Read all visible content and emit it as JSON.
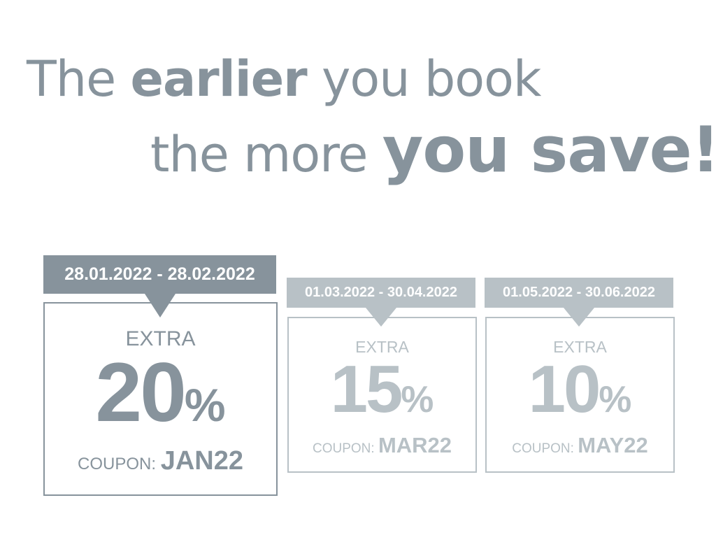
{
  "headline": {
    "line1_a": "The",
    "line1_b": "earlier",
    "line1_c": "you book",
    "line2_a": "the more",
    "line2_b": "you save!"
  },
  "colors": {
    "primary": "#87939c",
    "secondary": "#b8c1c6"
  },
  "offers": [
    {
      "dates": "28.01.2022 - 28.02.2022",
      "extra": "EXTRA",
      "value": "20",
      "pct": "%",
      "coupon_label": "COUPON:",
      "code": "JAN22"
    },
    {
      "dates": "01.03.2022 - 30.04.2022",
      "extra": "EXTRA",
      "value": "15",
      "pct": "%",
      "coupon_label": "COUPON:",
      "code": "MAR22"
    },
    {
      "dates": "01.05.2022 - 30.06.2022",
      "extra": "EXTRA",
      "value": "10",
      "pct": "%",
      "coupon_label": "COUPON:",
      "code": "MAY22"
    }
  ]
}
